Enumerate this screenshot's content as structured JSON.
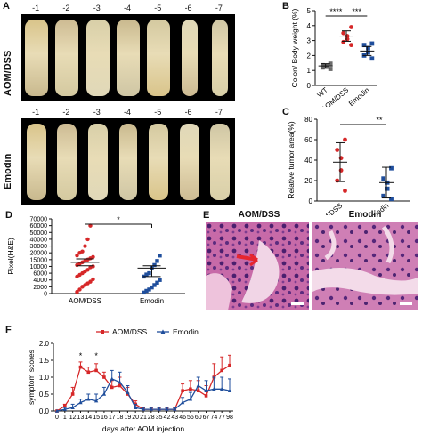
{
  "panels": {
    "A": {
      "letter": "A",
      "top_label": "AOM/DSS",
      "bottom_label": "Emodin",
      "top_numbers": [
        "-1",
        "-2",
        "-3",
        "-4",
        "-5",
        "-6",
        "-7"
      ],
      "bottom_numbers": [
        "-1",
        "-2",
        "-3",
        "-4",
        "-5",
        "-6",
        "-7"
      ]
    },
    "B": {
      "letter": "B"
    },
    "C": {
      "letter": "C"
    },
    "D": {
      "letter": "D"
    },
    "E": {
      "letter": "E",
      "left_title": "AOM/DSS",
      "right_title": "Emodin"
    },
    "F": {
      "letter": "F"
    }
  },
  "chart_data": [
    {
      "id": "B",
      "type": "scatter",
      "ylabel": "Colon/ Body weight (%)",
      "categories": [
        "WT",
        "AOM/DSS",
        "Emodin"
      ],
      "ylim": [
        0,
        5
      ],
      "yticks": [
        "0",
        "1",
        "2",
        "3",
        "4",
        "5"
      ],
      "groups": [
        {
          "name": "WT",
          "color": "#6b6b6b",
          "marker": "square",
          "values": [
            1.1,
            1.2,
            1.25,
            1.3,
            1.35,
            1.45
          ],
          "mean": 1.3,
          "sd": 0.15
        },
        {
          "name": "AOM/DSS",
          "color": "#d62728",
          "marker": "circle",
          "values": [
            2.7,
            2.9,
            3.1,
            3.3,
            3.5,
            3.9
          ],
          "mean": 3.3,
          "sd": 0.35
        },
        {
          "name": "Emodin",
          "color": "#1f4e9c",
          "marker": "square",
          "values": [
            1.8,
            2.0,
            2.2,
            2.5,
            2.7,
            2.8
          ],
          "mean": 2.3,
          "sd": 0.3
        }
      ],
      "significance": [
        {
          "from": "WT",
          "to": "AOM/DSS",
          "label": "****"
        },
        {
          "from": "AOM/DSS",
          "to": "Emodin",
          "label": "***"
        }
      ]
    },
    {
      "id": "C",
      "type": "scatter",
      "ylabel": "Relative tumor area(%)",
      "categories": [
        "AOM/DSS",
        "Emodin"
      ],
      "ylim": [
        0,
        80
      ],
      "yticks": [
        "0",
        "20",
        "40",
        "60",
        "80"
      ],
      "groups": [
        {
          "name": "AOM/DSS",
          "color": "#d62728",
          "marker": "circle",
          "values": [
            10,
            20,
            30,
            42,
            50,
            60
          ],
          "mean": 38,
          "sd": 19
        },
        {
          "name": "Emodin",
          "color": "#1f4e9c",
          "marker": "square",
          "values": [
            2,
            5,
            12,
            18,
            22,
            32
          ],
          "mean": 18,
          "sd": 15
        }
      ],
      "significance": [
        {
          "from": "AOM/DSS",
          "to": "Emodin",
          "label": "**"
        }
      ]
    },
    {
      "id": "D",
      "type": "scatter",
      "ylabel": "Pixel(H&E)",
      "categories": [
        "AOM/DSS",
        "Emodin"
      ],
      "yticks": [
        "0",
        "2000",
        "4000",
        "6000",
        "10000",
        "15000",
        "20000",
        "30000",
        "40000",
        "50000",
        "60000",
        "70000"
      ],
      "ytick_levels": [
        0,
        2000,
        4000,
        6000,
        10000,
        15000,
        20000,
        30000,
        40000,
        50000,
        60000,
        70000
      ],
      "groups": [
        {
          "name": "AOM/DSS",
          "color": "#d62728",
          "marker": "circle",
          "mean": 13000,
          "sd_lo": 10500,
          "sd_hi": 15500,
          "values": [
            500,
            1200,
            2000,
            2500,
            3000,
            3500,
            4200,
            5000,
            5500,
            6000,
            7000,
            8000,
            9500,
            10000,
            11000,
            12000,
            13000,
            14000,
            15000,
            16000,
            17000,
            18000,
            20000,
            22000,
            30000,
            40000,
            60000
          ]
        },
        {
          "name": "Emodin",
          "color": "#1f4e9c",
          "marker": "square",
          "mean": 9000,
          "sd_lo": 5000,
          "sd_hi": 10500,
          "values": [
            300,
            800,
            1200,
            1800,
            2500,
            3200,
            4000,
            5000,
            5600,
            6000,
            9000,
            11000,
            14000,
            18000
          ]
        }
      ],
      "significance": [
        {
          "from": "AOM/DSS",
          "to": "Emodin",
          "label": "*"
        }
      ]
    },
    {
      "id": "F",
      "type": "line",
      "xlabel": "days after AOM injection",
      "ylabel": "symptom scores",
      "x": [
        "0",
        "1",
        "12",
        "13",
        "14",
        "15",
        "16",
        "17",
        "18",
        "19",
        "20",
        "21",
        "28",
        "35",
        "42",
        "43",
        "46",
        "56",
        "60",
        "67",
        "74",
        "77",
        "98"
      ],
      "ylim": [
        0,
        2.0
      ],
      "yticks": [
        "0.0",
        "0.5",
        "1.0",
        "1.5",
        "2.0"
      ],
      "series": [
        {
          "name": "AOM/DSS",
          "color": "#d62728",
          "marker": "square",
          "values": [
            0.0,
            0.15,
            0.5,
            1.3,
            1.15,
            1.2,
            1.0,
            0.7,
            0.75,
            0.5,
            0.2,
            0.05,
            0.05,
            0.05,
            0.05,
            0.05,
            0.6,
            0.65,
            0.6,
            0.45,
            1.0,
            1.2,
            1.35
          ],
          "err": [
            0.0,
            0.05,
            0.2,
            0.15,
            0.15,
            0.2,
            0.15,
            0.2,
            0.25,
            0.2,
            0.1,
            0.05,
            0.05,
            0.05,
            0.05,
            0.05,
            0.2,
            0.25,
            0.3,
            0.3,
            0.4,
            0.4,
            0.3
          ]
        },
        {
          "name": "Emodin",
          "color": "#1f4e9c",
          "marker": "triangle",
          "values": [
            0.0,
            0.05,
            0.1,
            0.25,
            0.35,
            0.3,
            0.5,
            0.95,
            0.85,
            0.55,
            0.1,
            0.05,
            0.05,
            0.05,
            0.05,
            0.05,
            0.25,
            0.35,
            0.75,
            0.6,
            0.65,
            0.65,
            0.6
          ],
          "err": [
            0.0,
            0.05,
            0.1,
            0.1,
            0.15,
            0.2,
            0.2,
            0.25,
            0.3,
            0.2,
            0.1,
            0.05,
            0.05,
            0.05,
            0.05,
            0.05,
            0.15,
            0.2,
            0.25,
            0.3,
            0.35,
            0.35,
            0.35
          ]
        }
      ],
      "annotations": [
        {
          "x": "13",
          "label": "*"
        },
        {
          "x": "15",
          "label": "*"
        }
      ],
      "legend_position": "top"
    }
  ]
}
